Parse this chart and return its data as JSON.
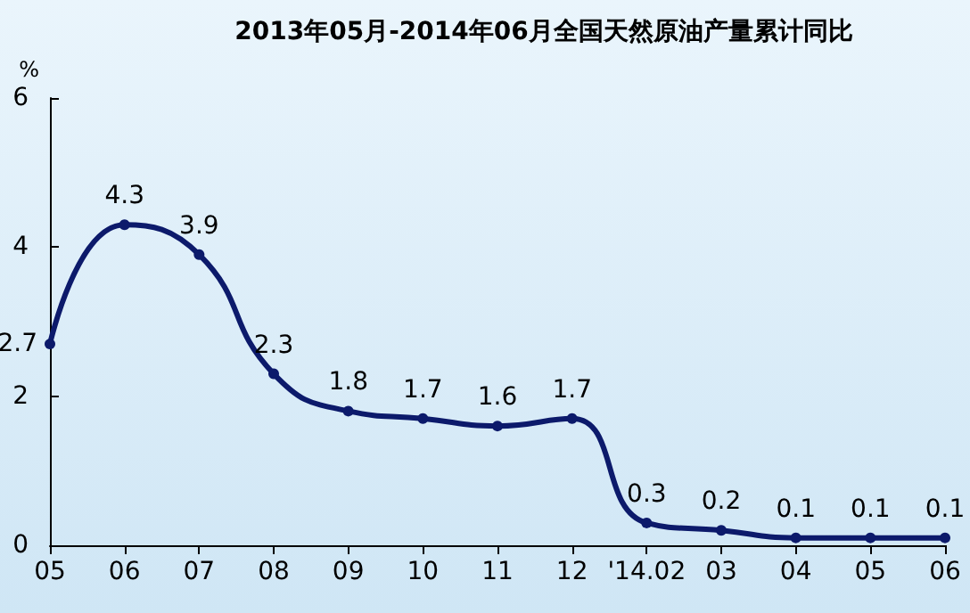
{
  "chart_data": {
    "type": "line",
    "title": "2013年05月-2014年06月全国天然原油产量累计同比",
    "ylabel": "%",
    "categories": [
      "05",
      "06",
      "07",
      "08",
      "09",
      "10",
      "11",
      "12",
      "'14.02",
      "03",
      "04",
      "05",
      "06"
    ],
    "series": [
      {
        "color": "#0c1a6b",
        "values": [
          2.7,
          4.3,
          3.9,
          2.3,
          1.8,
          1.7,
          1.6,
          1.7,
          0.3,
          0.2,
          0.1,
          0.1,
          0.1
        ]
      }
    ],
    "ylim": [
      0,
      6
    ],
    "yticks": [
      0,
      2,
      4,
      6
    ],
    "data_labels": true,
    "marker": "circle",
    "line_style": "solid"
  }
}
